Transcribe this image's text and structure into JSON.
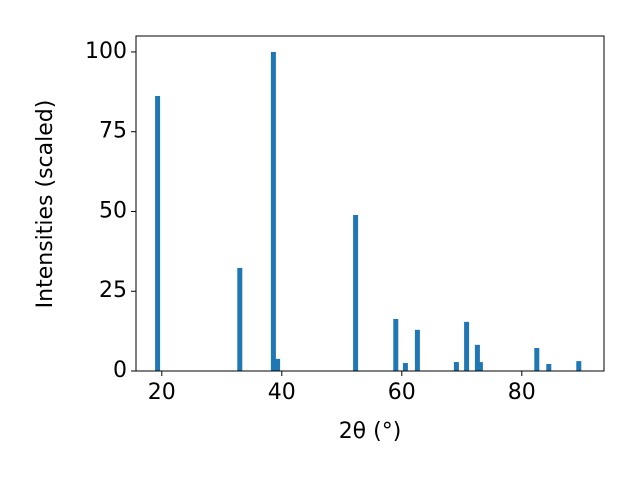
{
  "chart_data": {
    "type": "bar",
    "xlabel": "2θ (°)",
    "ylabel": "Intensities (scaled)",
    "x": [
      19.3,
      33.0,
      38.6,
      39.3,
      52.3,
      59.0,
      60.6,
      62.6,
      69.1,
      70.8,
      72.6,
      73.1,
      82.5,
      84.5,
      89.5
    ],
    "values": [
      86.2,
      32.3,
      100,
      3.8,
      48.9,
      16.3,
      2.5,
      12.9,
      2.8,
      15.4,
      8.2,
      2.8,
      7.2,
      2.2,
      3.1
    ],
    "color": "#1f77b4",
    "xlim": [
      15.7,
      93.7
    ],
    "xticks": [
      20,
      40,
      60,
      80
    ],
    "ylim": [
      0,
      105
    ],
    "yticks": [
      0,
      25,
      50,
      75,
      100
    ],
    "grid": false
  }
}
